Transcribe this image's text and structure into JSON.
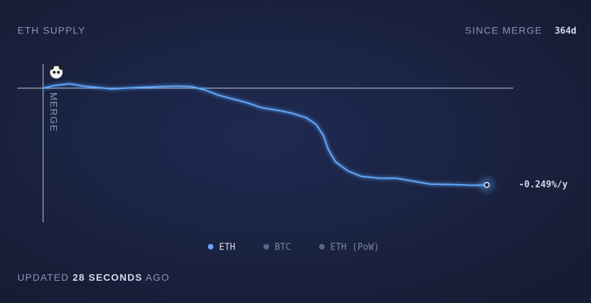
{
  "chart_data": {
    "type": "line",
    "title": "ETH SUPPLY",
    "since_label": "SINCE MERGE",
    "since_value": "364d",
    "marker_label": "MERGE",
    "end_label": "-0.249%/y",
    "x": [
      0,
      10,
      22,
      33,
      44,
      56,
      67,
      79,
      96,
      110,
      122,
      133,
      144,
      156,
      167,
      179,
      193,
      204,
      216,
      224,
      230,
      234,
      240,
      250,
      261,
      276,
      290,
      301,
      318,
      335,
      353,
      364
    ],
    "series": [
      {
        "color": "#5fa8ff",
        "values": [
          0,
          0.007,
          0.011,
          0.005,
          0.002,
          -0.002,
          0,
          0.002,
          0.004,
          0.005,
          0.004,
          -0.005,
          -0.018,
          -0.028,
          -0.037,
          -0.05,
          -0.057,
          -0.064,
          -0.076,
          -0.093,
          -0.121,
          -0.157,
          -0.189,
          -0.212,
          -0.226,
          -0.231,
          -0.231,
          -0.237,
          -0.246,
          -0.247,
          -0.249,
          -0.248
        ]
      }
    ],
    "xlim": [
      0,
      364
    ],
    "ylim": [
      -0.344,
      0.062
    ],
    "reference_line": 0,
    "legend": [
      {
        "name": "ETH",
        "color": "#6ea3f7"
      },
      {
        "name": "BTC",
        "color": "#5d6484"
      },
      {
        "name": "ETH (PoW)",
        "color": "#5d6484"
      }
    ],
    "updated": {
      "prefix": "UPDATED",
      "emphasis": "28 SECONDS",
      "suffix": "AGO"
    }
  }
}
